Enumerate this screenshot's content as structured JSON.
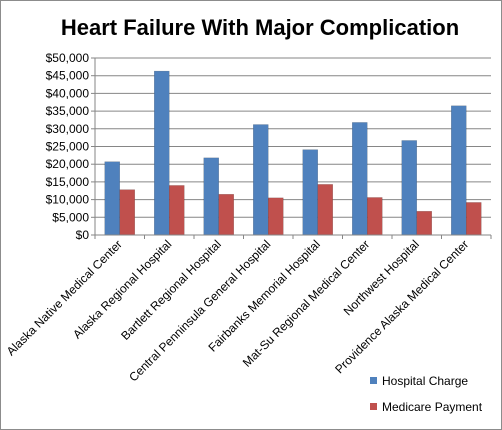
{
  "chart_data": {
    "type": "bar",
    "title": "Heart Failure With Major Complication",
    "categories": [
      "Alaska Native  Medical Center",
      "Alaska Regional Hospital",
      "Bartlett Regional Hospital",
      "Central Penninsula General Hospital",
      "Fairbanks Memorial Hospital",
      "Mat-Su Regional Medical Center",
      "Northwest Hospital",
      "Providence Alaska Medical Center"
    ],
    "series": [
      {
        "name": "Hospital Charge",
        "color": "#4F81BD",
        "values": [
          20700,
          46300,
          21800,
          31200,
          24100,
          31800,
          26700,
          36500
        ]
      },
      {
        "name": "Medicare Payment",
        "color": "#C0504D",
        "values": [
          12800,
          14000,
          11500,
          10500,
          14300,
          10600,
          6700,
          9200
        ]
      }
    ],
    "ylim": [
      0,
      50000
    ],
    "y_ticks": [
      "$0",
      "$5,000",
      "$10,000",
      "$15,000",
      "$20,000",
      "$25,000",
      "$30,000",
      "$35,000",
      "$40,000",
      "$45,000",
      "$50,000"
    ],
    "grid": true,
    "legend_position": "bottom-right"
  }
}
